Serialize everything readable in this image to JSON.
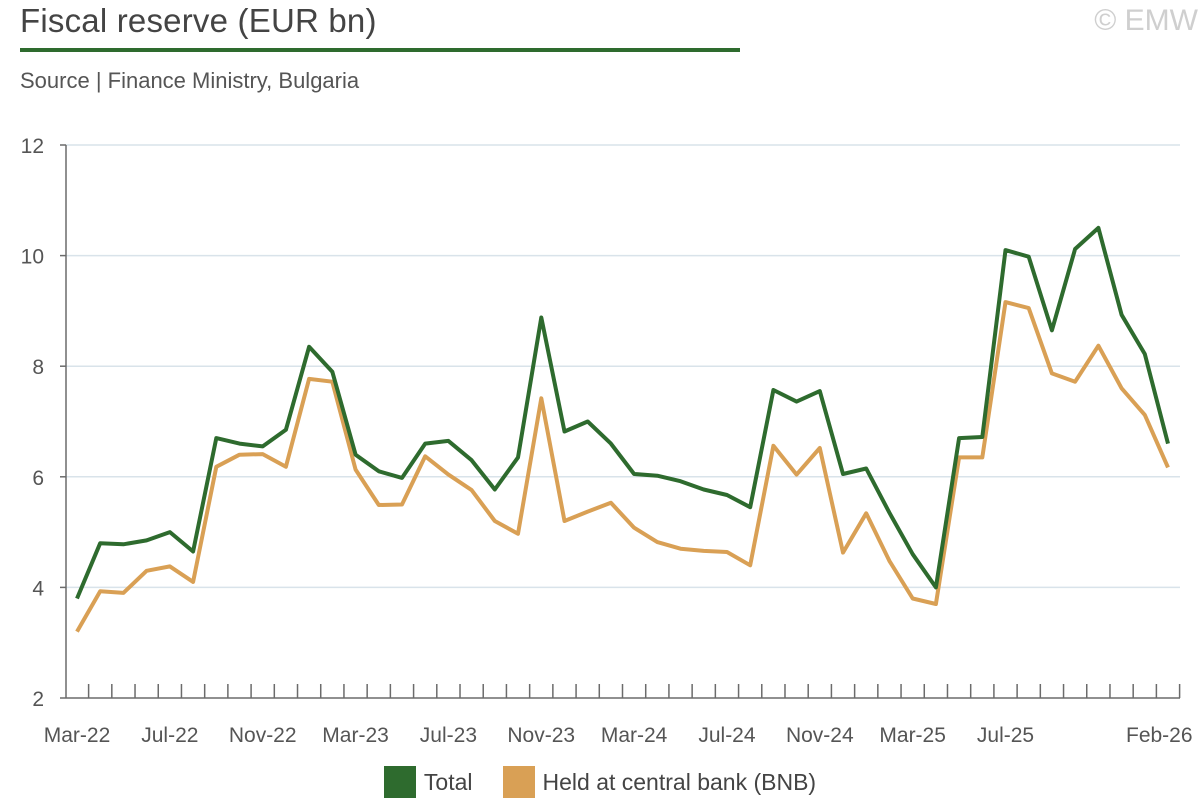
{
  "header": {
    "title": "Fiscal reserve (EUR bn)",
    "subtitle": "Source | Finance Ministry, Bulgaria",
    "copyright": "© EMW",
    "accent_color": "#2e6b2e"
  },
  "chart_data": {
    "type": "line",
    "title": "Fiscal reserve (EUR bn)",
    "xlabel": "",
    "ylabel": "",
    "ylim": [
      2,
      12
    ],
    "yticks": [
      2,
      4,
      6,
      8,
      10,
      12
    ],
    "grid": true,
    "legend_position": "bottom-center",
    "categories": [
      "Mar-22",
      "Apr-22",
      "May-22",
      "Jun-22",
      "Jul-22",
      "Aug-22",
      "Sep-22",
      "Oct-22",
      "Nov-22",
      "Dec-22",
      "Jan-23",
      "Feb-23",
      "Mar-23",
      "Apr-23",
      "May-23",
      "Jun-23",
      "Jul-23",
      "Aug-23",
      "Sep-23",
      "Oct-23",
      "Nov-23",
      "Dec-23",
      "Jan-24",
      "Feb-24",
      "Mar-24",
      "Apr-24",
      "May-24",
      "Jun-24",
      "Jul-24",
      "Aug-24",
      "Sep-24",
      "Oct-24",
      "Nov-24",
      "Dec-24",
      "Jan-25",
      "Feb-25",
      "Mar-25",
      "Apr-25",
      "May-25",
      "Jun-25",
      "Jul-25",
      "Aug-25",
      "Sep-25",
      "Oct-25",
      "Nov-25",
      "Dec-25",
      "Jan-26",
      "Feb-26"
    ],
    "tick_labels": [
      "Mar-22",
      "Jul-22",
      "Nov-22",
      "Mar-23",
      "Jul-23",
      "Nov-23",
      "Mar-24",
      "Jul-24",
      "Nov-24",
      "Mar-25",
      "Jul-25",
      "Feb-26"
    ],
    "series": [
      {
        "name": "Total",
        "color": "#2e6b2e",
        "values": [
          3.8,
          4.8,
          4.78,
          4.85,
          5.0,
          4.65,
          6.7,
          6.6,
          6.55,
          6.85,
          8.35,
          7.9,
          6.4,
          6.1,
          5.98,
          6.6,
          6.65,
          6.3,
          5.77,
          6.35,
          8.88,
          6.82,
          7.0,
          6.6,
          6.05,
          6.02,
          5.92,
          5.77,
          5.67,
          5.45,
          7.57,
          7.36,
          7.55,
          6.05,
          6.15,
          5.35,
          4.6,
          4.0,
          6.7,
          6.72,
          10.1,
          9.98,
          8.65,
          10.12,
          10.5,
          8.93,
          8.22,
          6.6
        ]
      },
      {
        "name": "Held at central bank (BNB)",
        "color": "#d9a055",
        "values": [
          3.2,
          3.93,
          3.9,
          4.3,
          4.38,
          4.1,
          6.18,
          6.4,
          6.41,
          6.18,
          7.77,
          7.72,
          6.13,
          5.49,
          5.5,
          6.37,
          6.04,
          5.76,
          5.2,
          4.97,
          7.42,
          5.2,
          5.37,
          5.53,
          5.08,
          4.82,
          4.7,
          4.66,
          4.64,
          4.4,
          6.56,
          6.04,
          6.52,
          4.63,
          5.34,
          4.48,
          3.8,
          3.7,
          6.35,
          6.35,
          9.16,
          9.05,
          7.87,
          7.72,
          8.37,
          7.6,
          7.12,
          6.17
        ]
      }
    ]
  }
}
